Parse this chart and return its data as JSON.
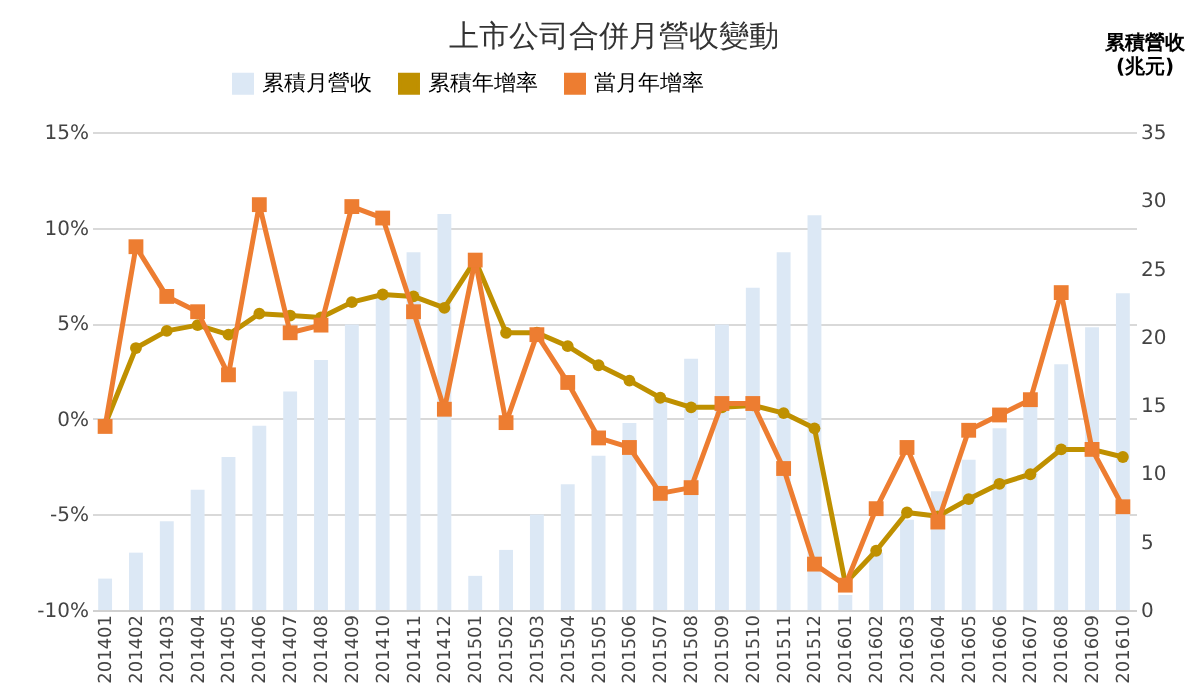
{
  "chart_data": {
    "type": "line",
    "title": "上市公司合併月營收變動",
    "y2label": "累積營收\n(兆元)",
    "categories": [
      "201401",
      "201402",
      "201403",
      "201404",
      "201405",
      "201406",
      "201407",
      "201408",
      "201409",
      "201410",
      "201411",
      "201412",
      "201501",
      "201502",
      "201503",
      "201504",
      "201505",
      "201506",
      "201507",
      "201508",
      "201509",
      "201510",
      "201511",
      "201512",
      "201601",
      "201602",
      "201603",
      "201604",
      "201605",
      "201606",
      "201607",
      "201608",
      "201609",
      "201610"
    ],
    "series": [
      {
        "name": "累積月營收",
        "type": "bar",
        "axis": "y2",
        "color": "#dce8f5",
        "values": [
          2.3,
          4.2,
          6.5,
          8.8,
          11.2,
          13.5,
          16.0,
          18.3,
          20.9,
          22.9,
          26.2,
          29.0,
          2.5,
          4.4,
          7.0,
          9.2,
          11.3,
          13.7,
          15.5,
          18.4,
          20.9,
          23.6,
          26.2,
          28.9,
          1.1,
          4.2,
          6.6,
          8.7,
          11.0,
          13.3,
          15.2,
          18.0,
          20.7,
          23.2
        ]
      },
      {
        "name": "累積年增率",
        "marker": "circle",
        "color": "#bf9000",
        "values": [
          -0.3,
          3.7,
          4.6,
          4.9,
          4.4,
          5.5,
          5.4,
          5.3,
          6.1,
          6.5,
          6.4,
          5.8,
          8.3,
          4.5,
          4.5,
          3.8,
          2.8,
          2.0,
          1.1,
          0.6,
          0.6,
          0.7,
          0.3,
          -0.5,
          -8.6,
          -6.9,
          -4.9,
          -5.1,
          -4.2,
          -3.4,
          -2.9,
          -1.6,
          -1.6,
          -2.0
        ]
      },
      {
        "name": "當月年增率",
        "marker": "square",
        "color": "#ed7d31",
        "values": [
          -0.4,
          9.0,
          6.4,
          5.6,
          2.3,
          11.2,
          4.5,
          4.9,
          11.1,
          10.5,
          5.6,
          0.5,
          8.3,
          -0.2,
          4.4,
          1.9,
          -1.0,
          -1.5,
          -3.9,
          -3.6,
          0.8,
          0.8,
          -2.6,
          -7.6,
          -8.7,
          -4.7,
          -1.5,
          -5.4,
          -0.6,
          0.2,
          1.0,
          6.6,
          -1.6,
          -4.6
        ]
      }
    ],
    "ylim": [
      -10,
      15
    ],
    "yticks": [
      {
        "value": -10,
        "label": "-10%"
      },
      {
        "value": -5,
        "label": "-5%"
      },
      {
        "value": 0,
        "label": "0%"
      },
      {
        "value": 5,
        "label": "5%"
      },
      {
        "value": 10,
        "label": "10%"
      },
      {
        "value": 15,
        "label": "15%"
      }
    ],
    "y2lim": [
      0,
      35
    ],
    "y2ticks": [
      0,
      5,
      10,
      15,
      20,
      25,
      30,
      35
    ],
    "grid": "y",
    "legend": "top"
  }
}
